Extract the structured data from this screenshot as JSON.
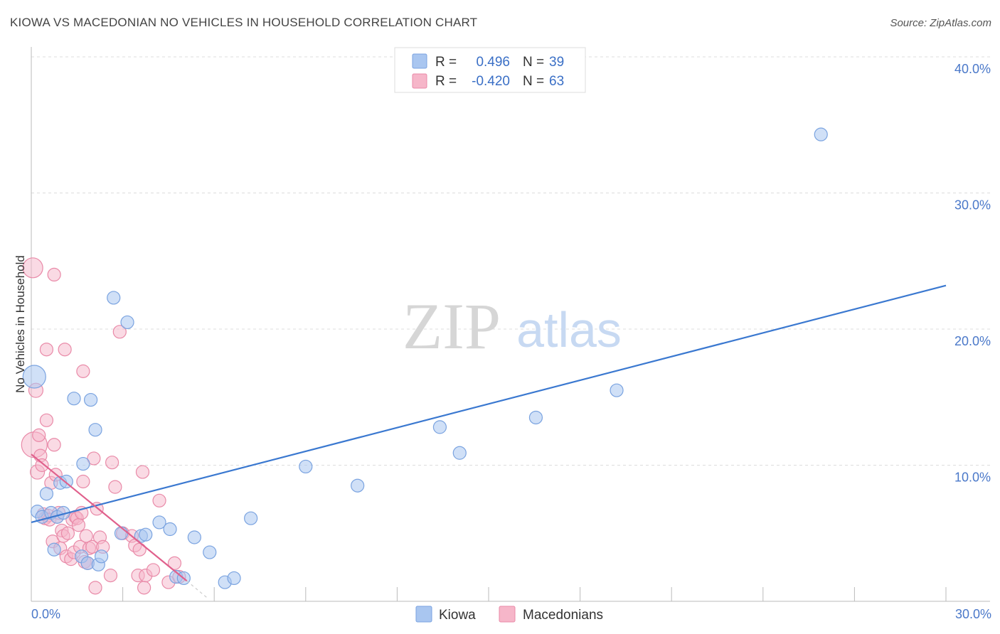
{
  "title": "KIOWA VS MACEDONIAN NO VEHICLES IN HOUSEHOLD CORRELATION CHART",
  "source": "Source: ZipAtlas.com",
  "watermark": {
    "zip": "ZIP",
    "atlas": "atlas"
  },
  "legend": {
    "r_label": "R =",
    "n_label": "N =",
    "kiowa": {
      "r": "0.496",
      "n": "39"
    },
    "macedonians": {
      "r": "-0.420",
      "n": "63"
    }
  },
  "colors": {
    "kiowa_fill": "#a9c6f0",
    "kiowa_stroke": "#7aa3e0",
    "kiowa_line": "#3a78d0",
    "mac_fill": "#f6b6c9",
    "mac_stroke": "#e98aa8",
    "mac_line": "#e0608c"
  },
  "chart_data": {
    "type": "scatter",
    "title": "KIOWA VS MACEDONIAN NO VEHICLES IN HOUSEHOLD CORRELATION CHART",
    "xlabel": "",
    "ylabel": "No Vehicles in Household",
    "xlim": [
      0,
      30
    ],
    "ylim": [
      0,
      40
    ],
    "x_tick_labels": [
      "0.0%",
      "30.0%"
    ],
    "y_ticks": [
      10,
      20,
      30,
      40
    ],
    "y_tick_labels": [
      "10.0%",
      "20.0%",
      "30.0%",
      "40.0%"
    ],
    "grid": true,
    "legend_position": "top-center",
    "series": [
      {
        "name": "Kiowa",
        "trend": {
          "x0": 0,
          "y0": 5.8,
          "x1": 30,
          "y1": 23.2
        },
        "points": [
          [
            0.1,
            16.5,
            16
          ],
          [
            0.2,
            6.6,
            9
          ],
          [
            0.35,
            6.2,
            9
          ],
          [
            0.5,
            7.9,
            9
          ],
          [
            0.65,
            6.5,
            9
          ],
          [
            0.75,
            3.8,
            9
          ],
          [
            0.85,
            6.2,
            9
          ],
          [
            0.95,
            8.7,
            9
          ],
          [
            1.05,
            6.5,
            9
          ],
          [
            1.15,
            8.8,
            9
          ],
          [
            1.4,
            14.9,
            9
          ],
          [
            1.65,
            3.3,
            9
          ],
          [
            1.7,
            10.1,
            9
          ],
          [
            1.85,
            2.8,
            9
          ],
          [
            1.95,
            14.8,
            9
          ],
          [
            2.1,
            12.6,
            9
          ],
          [
            2.2,
            2.7,
            9
          ],
          [
            2.3,
            3.3,
            9
          ],
          [
            2.7,
            22.3,
            9
          ],
          [
            2.95,
            5.0,
            9
          ],
          [
            3.15,
            20.5,
            9
          ],
          [
            3.6,
            4.8,
            9
          ],
          [
            3.75,
            4.9,
            9
          ],
          [
            4.2,
            5.8,
            9
          ],
          [
            4.55,
            5.3,
            9
          ],
          [
            4.75,
            1.8,
            9
          ],
          [
            5.0,
            1.7,
            9
          ],
          [
            5.35,
            4.7,
            9
          ],
          [
            5.85,
            3.6,
            9
          ],
          [
            6.35,
            1.4,
            9
          ],
          [
            6.65,
            1.7,
            9
          ],
          [
            7.2,
            6.1,
            9
          ],
          [
            9.0,
            9.9,
            9
          ],
          [
            10.7,
            8.5,
            9
          ],
          [
            13.4,
            12.8,
            9
          ],
          [
            14.05,
            10.9,
            9
          ],
          [
            16.55,
            13.5,
            9
          ],
          [
            19.2,
            15.5,
            9
          ],
          [
            25.9,
            34.3,
            9
          ]
        ]
      },
      {
        "name": "Macedonians",
        "trend": {
          "x0": 0,
          "y0": 10.8,
          "x1": 5.1,
          "y1": 1.5
        },
        "trend_dashed_to": {
          "x": 5.8,
          "y": 0.2
        },
        "points": [
          [
            0.05,
            24.5,
            14
          ],
          [
            0.1,
            11.5,
            18
          ],
          [
            0.15,
            15.5,
            10
          ],
          [
            0.2,
            9.5,
            10
          ],
          [
            0.25,
            12.2,
            9
          ],
          [
            0.3,
            10.7,
            9
          ],
          [
            0.35,
            10.0,
            9
          ],
          [
            0.4,
            6.4,
            9
          ],
          [
            0.45,
            6.1,
            9
          ],
          [
            0.5,
            13.3,
            9
          ],
          [
            0.5,
            18.5,
            9
          ],
          [
            0.55,
            6.3,
            9
          ],
          [
            0.6,
            6.0,
            9
          ],
          [
            0.65,
            8.7,
            9
          ],
          [
            0.7,
            4.4,
            9
          ],
          [
            0.75,
            24.0,
            9
          ],
          [
            0.75,
            11.5,
            9
          ],
          [
            0.8,
            9.3,
            9
          ],
          [
            0.85,
            6.2,
            9
          ],
          [
            0.9,
            6.5,
            9
          ],
          [
            0.95,
            3.9,
            9
          ],
          [
            1.0,
            5.2,
            9
          ],
          [
            1.05,
            4.8,
            9
          ],
          [
            1.1,
            18.5,
            9
          ],
          [
            1.15,
            3.3,
            9
          ],
          [
            1.2,
            5.0,
            9
          ],
          [
            1.3,
            3.1,
            9
          ],
          [
            1.35,
            6.0,
            9
          ],
          [
            1.4,
            3.6,
            9
          ],
          [
            1.45,
            6.2,
            9
          ],
          [
            1.5,
            6.1,
            9
          ],
          [
            1.55,
            5.6,
            9
          ],
          [
            1.6,
            4.0,
            9
          ],
          [
            1.65,
            6.5,
            9
          ],
          [
            1.7,
            8.8,
            9
          ],
          [
            1.7,
            16.9,
            9
          ],
          [
            1.75,
            2.9,
            9
          ],
          [
            1.8,
            4.8,
            9
          ],
          [
            1.85,
            2.8,
            9
          ],
          [
            1.9,
            3.9,
            9
          ],
          [
            2.0,
            4.0,
            9
          ],
          [
            2.05,
            10.5,
            9
          ],
          [
            2.1,
            1.0,
            9
          ],
          [
            2.15,
            6.8,
            9
          ],
          [
            2.25,
            4.7,
            9
          ],
          [
            2.35,
            4.0,
            9
          ],
          [
            2.6,
            1.9,
            9
          ],
          [
            2.65,
            10.2,
            9
          ],
          [
            2.75,
            8.4,
            9
          ],
          [
            2.9,
            19.8,
            9
          ],
          [
            3.0,
            5.0,
            9
          ],
          [
            3.3,
            4.8,
            9
          ],
          [
            3.4,
            4.1,
            9
          ],
          [
            3.5,
            1.9,
            9
          ],
          [
            3.55,
            3.8,
            9
          ],
          [
            3.65,
            9.5,
            9
          ],
          [
            3.7,
            1.0,
            9
          ],
          [
            3.75,
            1.9,
            9
          ],
          [
            4.0,
            2.3,
            9
          ],
          [
            4.2,
            7.4,
            9
          ],
          [
            4.5,
            1.4,
            9
          ],
          [
            4.7,
            2.8,
            9
          ],
          [
            4.85,
            1.8,
            9
          ]
        ]
      }
    ]
  }
}
